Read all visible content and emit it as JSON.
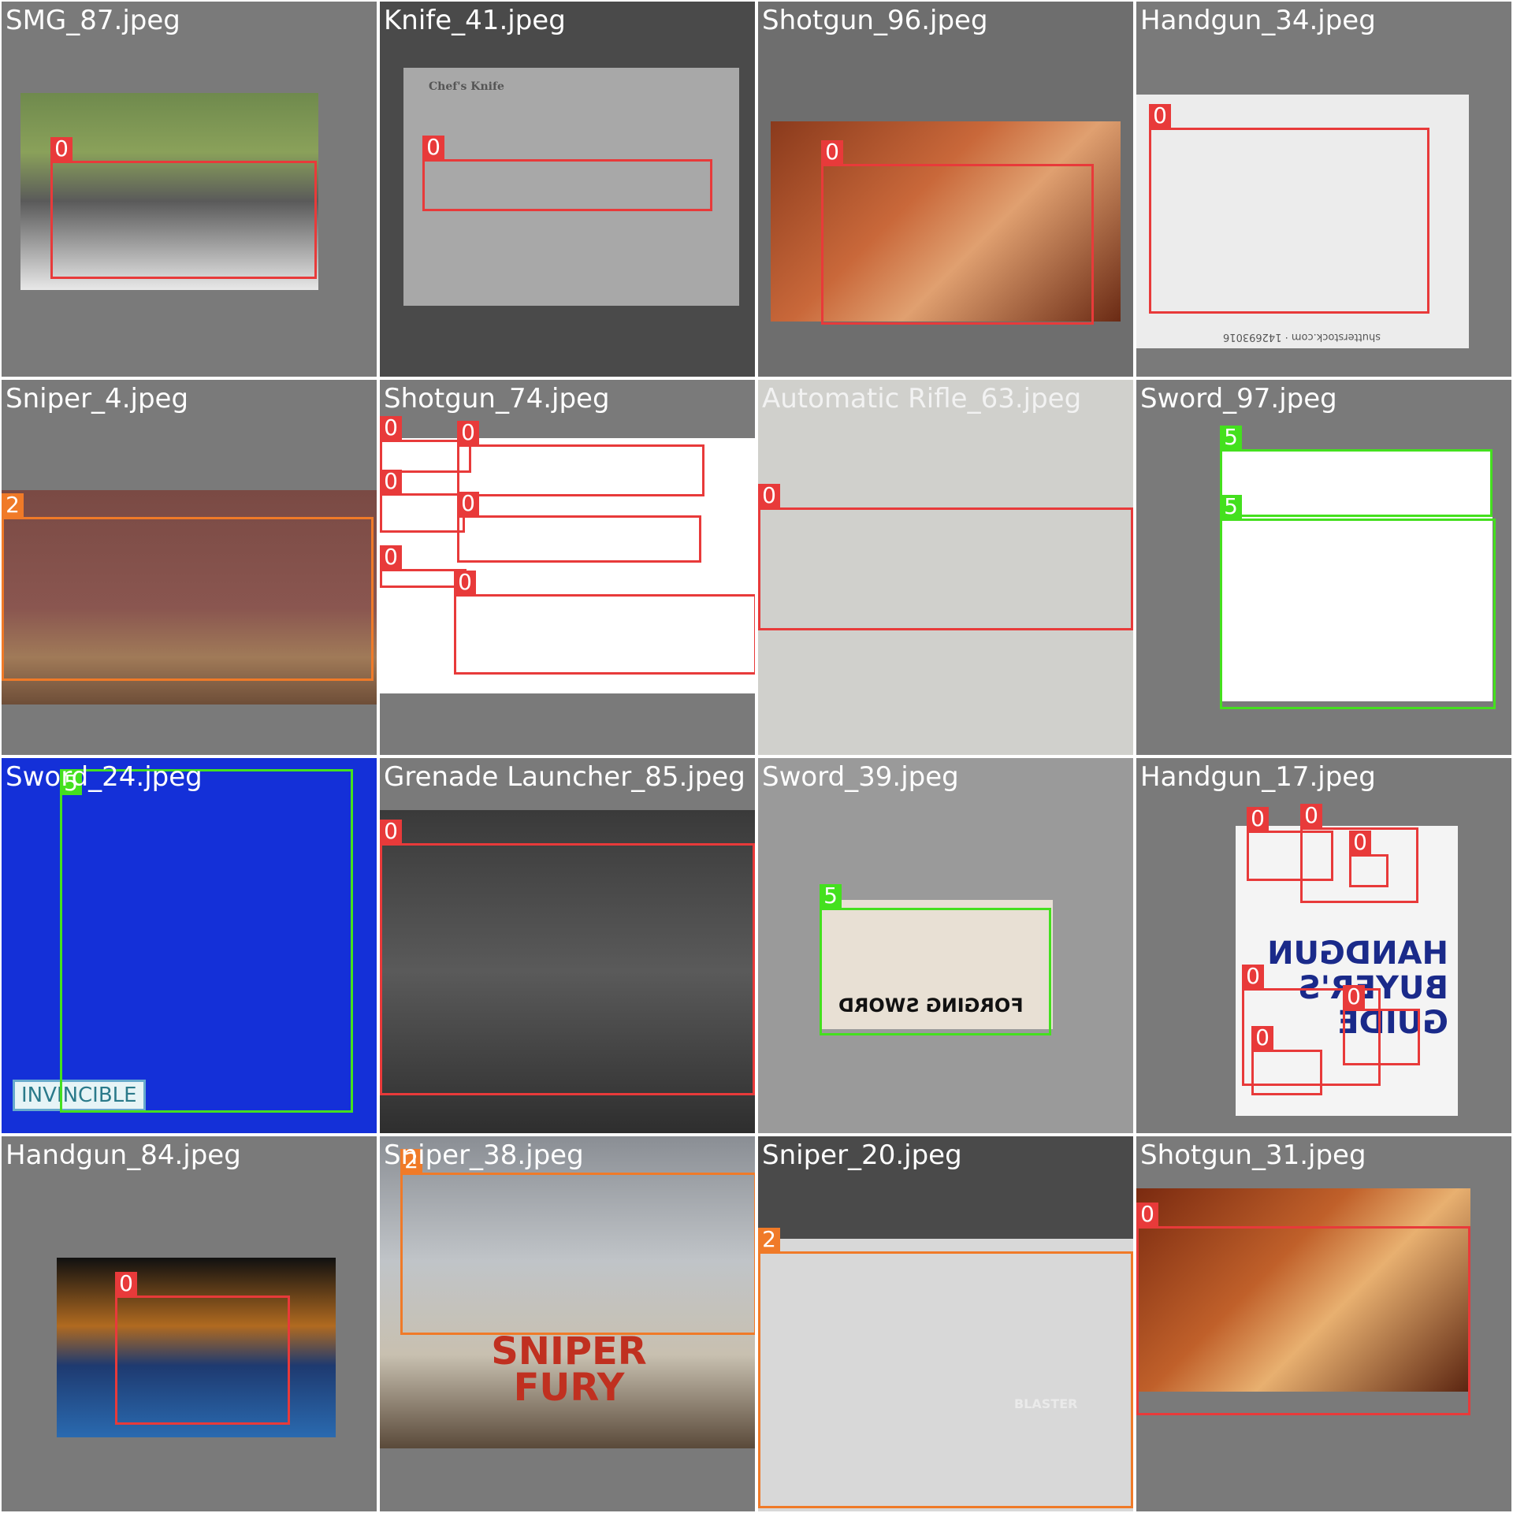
{
  "class_colors": {
    "0": "#e83a3a",
    "2": "#f07a28",
    "5": "#44e01e"
  },
  "tiles": [
    {
      "filename": "SMG_87.jpeg",
      "photo_text": ""
    },
    {
      "filename": "Knife_41.jpeg",
      "photo_text": "Chef's Knife"
    },
    {
      "filename": "Shotgun_96.jpeg",
      "photo_text": ""
    },
    {
      "filename": "Handgun_34.jpeg",
      "photo_text": "shutterstock.com · 142693016"
    },
    {
      "filename": "Sniper_4.jpeg",
      "photo_text": ""
    },
    {
      "filename": "Shotgun_74.jpeg",
      "photo_text": ""
    },
    {
      "filename": "Automatic Rifle_63.jpeg",
      "photo_text": ""
    },
    {
      "filename": "Sword_97.jpeg",
      "photo_text": ""
    },
    {
      "filename": "Sword_24.jpeg",
      "photo_text": "INVINCIBLE"
    },
    {
      "filename": "Grenade Launcher_85.jpeg",
      "photo_text": ""
    },
    {
      "filename": "Sword_39.jpeg",
      "photo_text": "FORGING SWORD"
    },
    {
      "filename": "Handgun_17.jpeg",
      "photo_text": "HANDGUN BUYER'S GUIDE"
    },
    {
      "filename": "Handgun_84.jpeg",
      "photo_text": ""
    },
    {
      "filename": "Sniper_38.jpeg",
      "photo_text": "SNIPER FURY"
    },
    {
      "filename": "Sniper_20.jpeg",
      "photo_text": "BLASTER"
    },
    {
      "filename": "Shotgun_31.jpeg",
      "photo_text": ""
    }
  ],
  "detections": [
    [
      {
        "class": "0"
      }
    ],
    [
      {
        "class": "0"
      }
    ],
    [
      {
        "class": "0"
      }
    ],
    [
      {
        "class": "0"
      }
    ],
    [
      {
        "class": "2"
      }
    ],
    [
      {
        "class": "0"
      },
      {
        "class": "0"
      },
      {
        "class": "0"
      },
      {
        "class": "0"
      },
      {
        "class": "0"
      },
      {
        "class": "0"
      }
    ],
    [
      {
        "class": "0"
      }
    ],
    [
      {
        "class": "5"
      },
      {
        "class": "5"
      }
    ],
    [
      {
        "class": "5"
      }
    ],
    [
      {
        "class": "0"
      }
    ],
    [
      {
        "class": "5"
      }
    ],
    [
      {
        "class": "0"
      },
      {
        "class": "0"
      },
      {
        "class": "0"
      },
      {
        "class": "0"
      },
      {
        "class": "0"
      },
      {
        "class": "0"
      }
    ],
    [
      {
        "class": "0"
      }
    ],
    [
      {
        "class": "2"
      }
    ],
    [
      {
        "class": "2"
      }
    ],
    [
      {
        "class": "0"
      }
    ]
  ]
}
